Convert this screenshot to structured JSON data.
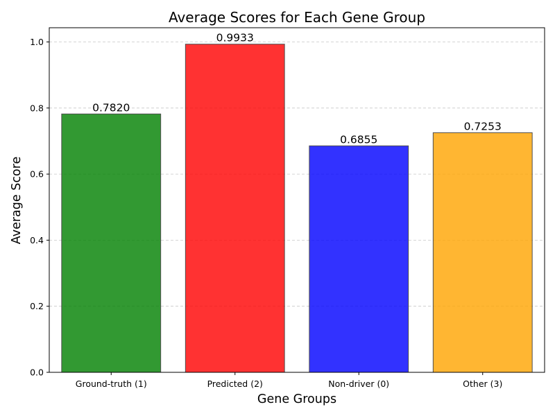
{
  "chart_data": {
    "type": "bar",
    "title": "Average Scores for Each Gene Group",
    "xlabel": "Gene Groups",
    "ylabel": "Average Score",
    "categories": [
      "Ground-truth (1)",
      "Predicted (2)",
      "Non-driver (0)",
      "Other (3)"
    ],
    "values": [
      0.782,
      0.9933,
      0.6855,
      0.7253
    ],
    "value_labels": [
      "0.7820",
      "0.9933",
      "0.6855",
      "0.7253"
    ],
    "colors": [
      "#008000",
      "#ff0000",
      "#0000ff",
      "#ffa500"
    ],
    "ylim": [
      0,
      1.043
    ],
    "yticks": [
      0.0,
      0.2,
      0.4,
      0.6,
      0.8,
      1.0
    ],
    "ytick_labels": [
      "0.0",
      "0.2",
      "0.4",
      "0.6",
      "0.8",
      "1.0"
    ],
    "grid": "y-dashed",
    "legend": "none"
  }
}
